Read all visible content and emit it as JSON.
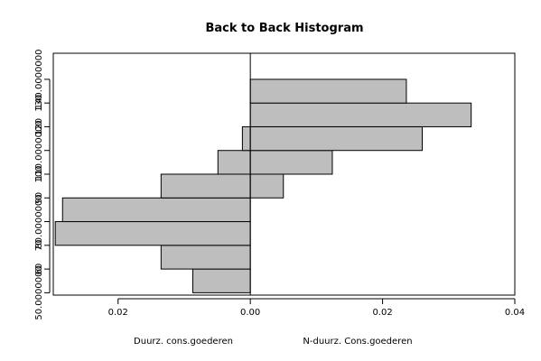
{
  "chart_data": {
    "type": "bar",
    "orientation": "horizontal-back-to-back",
    "title": "Back to Back Histogram",
    "bins": [
      {
        "lower": 50,
        "upper": 60
      },
      {
        "lower": 60,
        "upper": 70
      },
      {
        "lower": 70,
        "upper": 80
      },
      {
        "lower": 80,
        "upper": 90
      },
      {
        "lower": 90,
        "upper": 100
      },
      {
        "lower": 100,
        "upper": 110
      },
      {
        "lower": 110,
        "upper": 120
      },
      {
        "lower": 120,
        "upper": 130
      },
      {
        "lower": 130,
        "upper": 140
      },
      {
        "lower": 140,
        "upper": 150
      }
    ],
    "y_tick_labels": [
      {
        "value": 50,
        "label": "50.0000000"
      },
      {
        "value": 60,
        "label": "60"
      },
      {
        "value": 70,
        "label": "70"
      },
      {
        "value": 80,
        "label": "80.0000000"
      },
      {
        "value": 90,
        "label": "90"
      },
      {
        "value": 100,
        "label": "100"
      },
      {
        "value": 110,
        "label": "110.0000000"
      },
      {
        "value": 120,
        "label": "120"
      },
      {
        "value": 130,
        "label": "130"
      },
      {
        "value": 140,
        "label": "140.0000000"
      }
    ],
    "x_tick_labels": [
      {
        "value": -0.02,
        "label": "0.02"
      },
      {
        "value": 0,
        "label": "0.00"
      },
      {
        "value": 0.02,
        "label": "0.02"
      },
      {
        "value": 0.04,
        "label": "0.04"
      }
    ],
    "xlim": [
      -0.0298,
      0.04
    ],
    "ylim": [
      49,
      151
    ],
    "series": [
      {
        "name": "Duurz. cons.goederen",
        "side": "left",
        "values": [
          0.0087,
          0.0135,
          0.0295,
          0.0284,
          0.0135,
          0.0049,
          0.0012,
          0,
          0,
          0
        ]
      },
      {
        "name": "N-duurz. Cons.goederen",
        "side": "right",
        "values": [
          0,
          0,
          0,
          0,
          0.005,
          0.0124,
          0.026,
          0.0334,
          0.0236,
          0
        ]
      }
    ],
    "colors": {
      "bar_fill": "#bebebe",
      "bar_stroke": "#000000"
    },
    "grid": false
  }
}
